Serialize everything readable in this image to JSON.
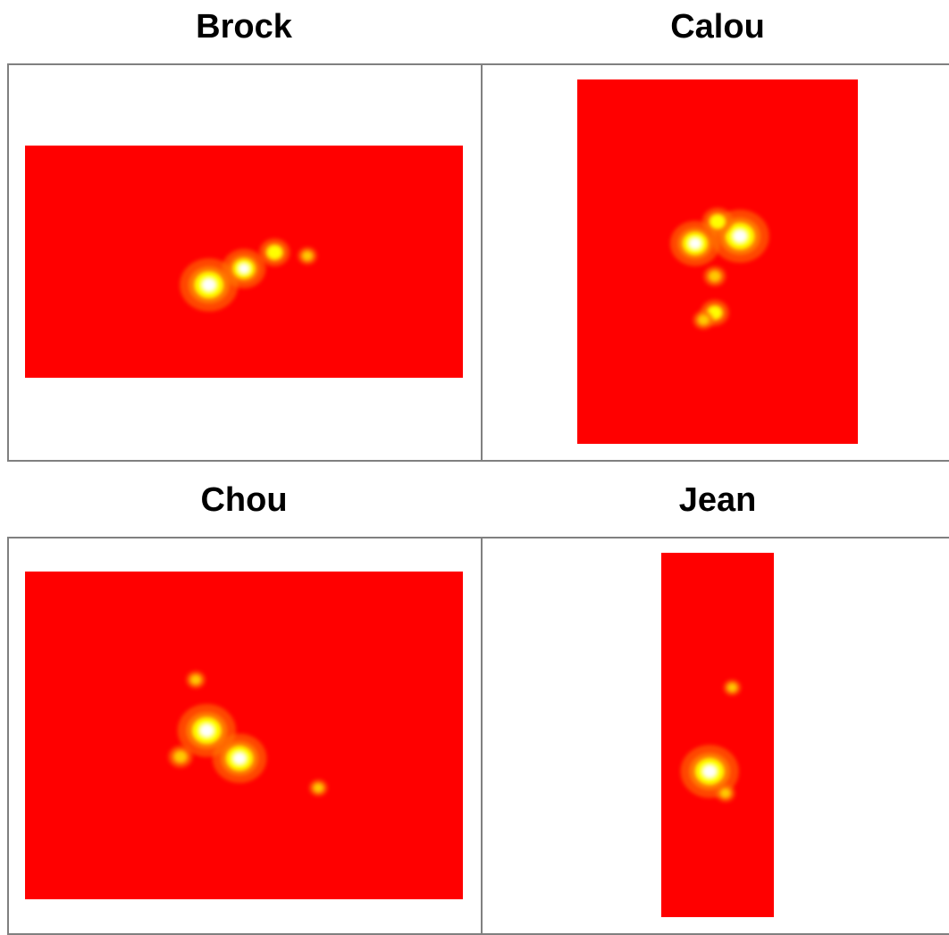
{
  "chart_data": [
    {
      "type": "heatmap",
      "title": "Brock",
      "colormap": [
        "#ff0000",
        "#ff7f00",
        "#ffff00",
        "#ffffff"
      ],
      "background": "#ff0000",
      "grid": false,
      "hotspots": [
        {
          "x": 0.42,
          "y": 0.6,
          "intensity": 1.0
        },
        {
          "x": 0.5,
          "y": 0.53,
          "intensity": 0.65
        },
        {
          "x": 0.57,
          "y": 0.46,
          "intensity": 0.35
        },
        {
          "x": 0.645,
          "y": 0.475,
          "intensity": 0.08
        }
      ]
    },
    {
      "type": "heatmap",
      "title": "Calou",
      "colormap": [
        "#ff0000",
        "#ff7f00",
        "#ffff00",
        "#ffffff"
      ],
      "background": "#ff0000",
      "grid": false,
      "hotspots": [
        {
          "x": 0.42,
          "y": 0.45,
          "intensity": 0.8
        },
        {
          "x": 0.58,
          "y": 0.43,
          "intensity": 1.0
        },
        {
          "x": 0.5,
          "y": 0.39,
          "intensity": 0.35
        },
        {
          "x": 0.49,
          "y": 0.54,
          "intensity": 0.15
        },
        {
          "x": 0.49,
          "y": 0.64,
          "intensity": 0.3
        },
        {
          "x": 0.45,
          "y": 0.66,
          "intensity": 0.12
        }
      ]
    },
    {
      "type": "heatmap",
      "title": "Chou",
      "colormap": [
        "#ff0000",
        "#ff7f00",
        "#ffff00",
        "#ffffff"
      ],
      "background": "#ff0000",
      "grid": false,
      "hotspots": [
        {
          "x": 0.415,
          "y": 0.485,
          "intensity": 1.0
        },
        {
          "x": 0.49,
          "y": 0.57,
          "intensity": 0.9
        },
        {
          "x": 0.355,
          "y": 0.565,
          "intensity": 0.2
        },
        {
          "x": 0.39,
          "y": 0.33,
          "intensity": 0.08
        },
        {
          "x": 0.67,
          "y": 0.66,
          "intensity": 0.06
        }
      ]
    },
    {
      "type": "heatmap",
      "title": "Jean",
      "colormap": [
        "#ff0000",
        "#ff7f00",
        "#ffff00",
        "#ffffff"
      ],
      "background": "#ff0000",
      "grid": false,
      "hotspots": [
        {
          "x": 0.43,
          "y": 0.6,
          "intensity": 1.0
        },
        {
          "x": 0.57,
          "y": 0.66,
          "intensity": 0.08
        },
        {
          "x": 0.63,
          "y": 0.37,
          "intensity": 0.04
        }
      ]
    }
  ]
}
